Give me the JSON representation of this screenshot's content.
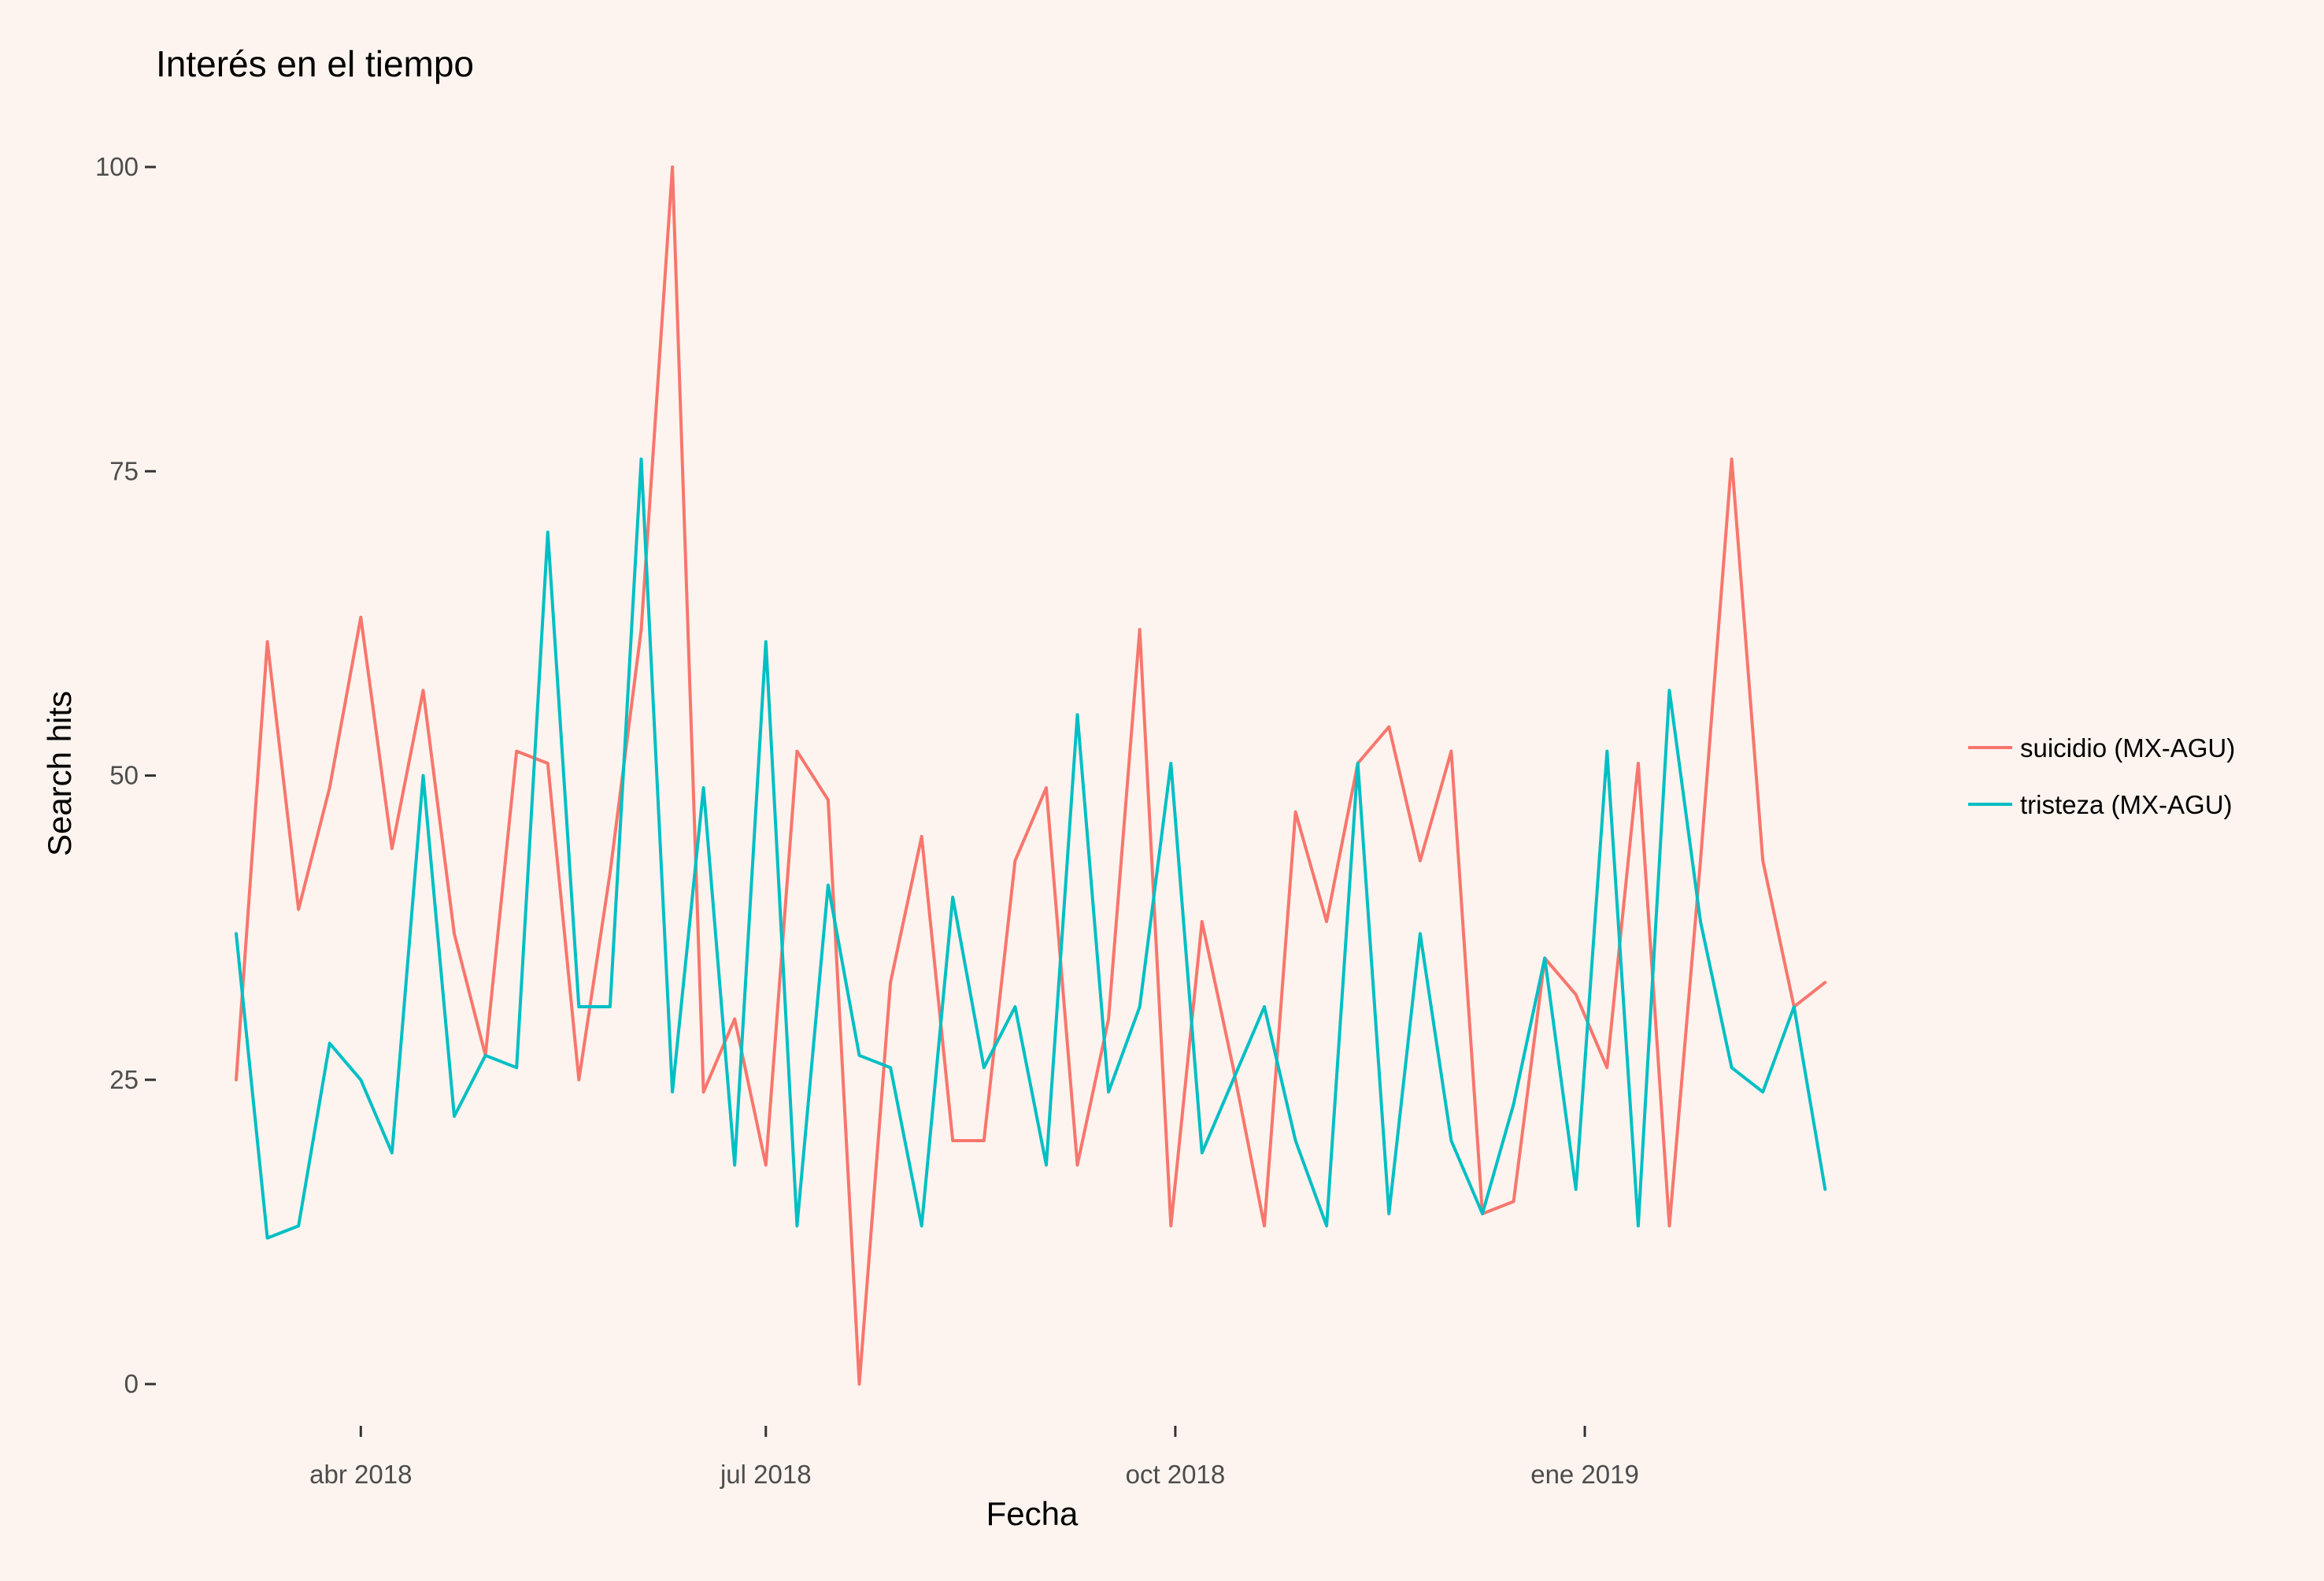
{
  "chart_data": {
    "type": "line",
    "title": "Interés en el tiempo",
    "xlabel": "Fecha",
    "ylabel": "Search hits",
    "ylim": [
      0,
      100
    ],
    "yticks": [
      0,
      25,
      50,
      75,
      100
    ],
    "xlim": [
      "2018-03-04",
      "2019-02-25"
    ],
    "xticks": [
      {
        "date": "2018-04-01",
        "label": "abr 2018"
      },
      {
        "date": "2018-07-01",
        "label": "jul 2018"
      },
      {
        "date": "2018-10-01",
        "label": "oct 2018"
      },
      {
        "date": "2019-01-01",
        "label": "ene 2019"
      }
    ],
    "grid": false,
    "legend_position": "right",
    "x": [
      "2018-03-04",
      "2018-03-11",
      "2018-03-18",
      "2018-03-25",
      "2018-04-01",
      "2018-04-08",
      "2018-04-15",
      "2018-04-22",
      "2018-04-29",
      "2018-05-06",
      "2018-05-13",
      "2018-05-20",
      "2018-05-27",
      "2018-06-03",
      "2018-06-10",
      "2018-06-17",
      "2018-06-24",
      "2018-07-01",
      "2018-07-08",
      "2018-07-15",
      "2018-07-22",
      "2018-07-29",
      "2018-08-05",
      "2018-08-12",
      "2018-08-19",
      "2018-08-26",
      "2018-09-02",
      "2018-09-09",
      "2018-09-16",
      "2018-09-23",
      "2018-09-30",
      "2018-10-07",
      "2018-10-14",
      "2018-10-21",
      "2018-10-28",
      "2018-11-04",
      "2018-11-11",
      "2018-11-18",
      "2018-11-25",
      "2018-12-02",
      "2018-12-09",
      "2018-12-16",
      "2018-12-23",
      "2018-12-30",
      "2019-01-06",
      "2019-01-13",
      "2019-01-20",
      "2019-01-27",
      "2019-02-03",
      "2019-02-10",
      "2019-02-17",
      "2019-02-24"
    ],
    "series": [
      {
        "name": "suicidio (MX-AGU)",
        "color": "#f8766d",
        "values": [
          25,
          61,
          39,
          49,
          63,
          44,
          57,
          37,
          27,
          52,
          51,
          25,
          42,
          62,
          100,
          24,
          30,
          18,
          52,
          48,
          0,
          33,
          45,
          20,
          20,
          43,
          49,
          18,
          30,
          62,
          13,
          38,
          26,
          13,
          47,
          38,
          51,
          54,
          43,
          52,
          14,
          15,
          35,
          32,
          26,
          51,
          13,
          43,
          76,
          43,
          31,
          33
        ]
      },
      {
        "name": "tristeza (MX-AGU)",
        "color": "#00bfc4",
        "values": [
          37,
          12,
          13,
          28,
          25,
          19,
          50,
          22,
          27,
          26,
          70,
          31,
          31,
          76,
          24,
          49,
          18,
          61,
          13,
          41,
          27,
          26,
          13,
          40,
          26,
          31,
          18,
          55,
          24,
          31,
          51,
          19,
          25,
          31,
          20,
          13,
          51,
          14,
          37,
          20,
          14,
          23,
          35,
          16,
          52,
          13,
          57,
          38,
          26,
          24,
          31,
          16
        ]
      }
    ]
  }
}
